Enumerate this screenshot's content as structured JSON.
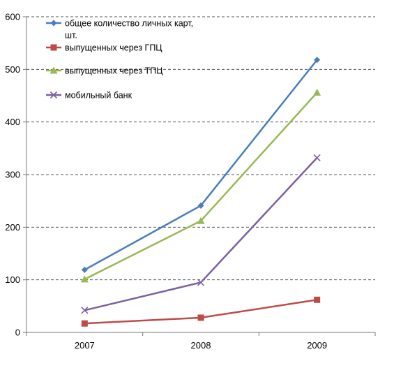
{
  "chart_data": {
    "type": "line",
    "x": [
      "2007",
      "2008",
      "2009"
    ],
    "ylim": [
      0,
      600
    ],
    "yticks": [
      0,
      100,
      200,
      300,
      400,
      500,
      600
    ],
    "grid": true,
    "legend_position": "top-left",
    "series": [
      {
        "name": "общее количество личных карт, шт.",
        "legend_lines": [
          "общее количество личных карт,",
          "шт."
        ],
        "color": "#4A7EBB",
        "marker": "diamond",
        "values": [
          119,
          241,
          518
        ]
      },
      {
        "name": "выпущенных через ГПЦ",
        "legend_lines": [
          "выпущенных через ГПЦ"
        ],
        "color": "#BE4B48",
        "marker": "square",
        "values": [
          17,
          28,
          62
        ]
      },
      {
        "name": "выпущенных через ТПЦ",
        "legend_lines": [
          "выпущенных через ТПЦ"
        ],
        "color": "#98B954",
        "marker": "triangle",
        "values": [
          101,
          212,
          456
        ]
      },
      {
        "name": "мобильный банк",
        "legend_lines": [
          "мобильный банк"
        ],
        "color": "#7D60A0",
        "marker": "x",
        "values": [
          42,
          95,
          332
        ]
      }
    ]
  }
}
